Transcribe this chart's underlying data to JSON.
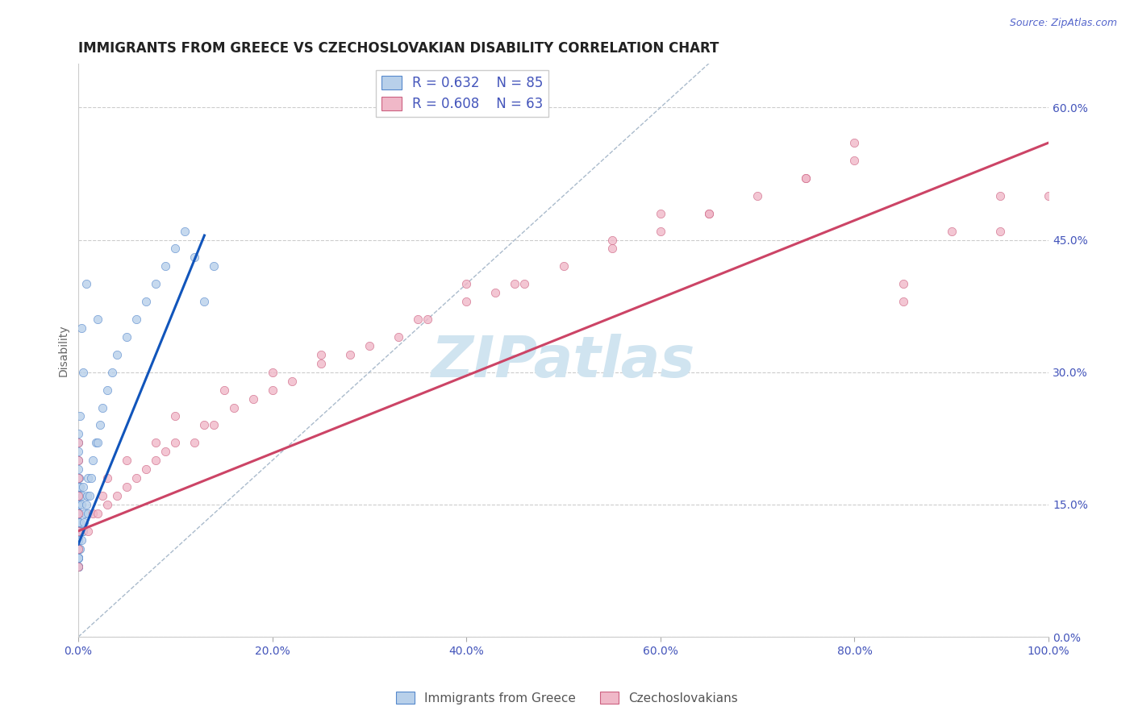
{
  "title": "IMMIGRANTS FROM GREECE VS CZECHOSLOVAKIAN DISABILITY CORRELATION CHART",
  "source": "Source: ZipAtlas.com",
  "ylabel": "Disability",
  "xlim": [
    0.0,
    1.0
  ],
  "ylim": [
    0.0,
    0.65
  ],
  "xticks": [
    0.0,
    0.2,
    0.4,
    0.6,
    0.8,
    1.0
  ],
  "xtick_labels": [
    "0.0%",
    "20.0%",
    "40.0%",
    "60.0%",
    "80.0%",
    "100.0%"
  ],
  "yticks": [
    0.0,
    0.15,
    0.3,
    0.45,
    0.6
  ],
  "ytick_labels": [
    "0.0%",
    "15.0%",
    "30.0%",
    "45.0%",
    "60.0%"
  ],
  "grid_color": "#cccccc",
  "background_color": "#ffffff",
  "watermark_text": "ZIPatlas",
  "watermark_color": "#d0e4f0",
  "blue_series": {
    "label": "Immigrants from Greece",
    "R": 0.632,
    "N": 85,
    "face_color": "#b8d0ea",
    "edge_color": "#5588cc",
    "marker_size": 55,
    "x": [
      0.0,
      0.0,
      0.0,
      0.0,
      0.0,
      0.0,
      0.0,
      0.0,
      0.0,
      0.0,
      0.0,
      0.0,
      0.0,
      0.0,
      0.0,
      0.0,
      0.0,
      0.0,
      0.0,
      0.0,
      0.0,
      0.0,
      0.0,
      0.0,
      0.0,
      0.0,
      0.0,
      0.0,
      0.0,
      0.0,
      0.0,
      0.0,
      0.0,
      0.0,
      0.0,
      0.0,
      0.0,
      0.0,
      0.0,
      0.0,
      0.001,
      0.001,
      0.001,
      0.001,
      0.001,
      0.002,
      0.002,
      0.002,
      0.003,
      0.003,
      0.004,
      0.004,
      0.005,
      0.005,
      0.006,
      0.007,
      0.008,
      0.009,
      0.01,
      0.01,
      0.012,
      0.013,
      0.015,
      0.018,
      0.02,
      0.022,
      0.025,
      0.03,
      0.035,
      0.04,
      0.05,
      0.06,
      0.07,
      0.08,
      0.09,
      0.1,
      0.11,
      0.12,
      0.13,
      0.14,
      0.005,
      0.002,
      0.003,
      0.008,
      0.02
    ],
    "y": [
      0.08,
      0.09,
      0.1,
      0.11,
      0.12,
      0.13,
      0.14,
      0.15,
      0.16,
      0.17,
      0.18,
      0.19,
      0.2,
      0.21,
      0.22,
      0.23,
      0.08,
      0.09,
      0.1,
      0.11,
      0.12,
      0.13,
      0.14,
      0.15,
      0.16,
      0.17,
      0.08,
      0.09,
      0.1,
      0.11,
      0.12,
      0.13,
      0.14,
      0.15,
      0.16,
      0.17,
      0.08,
      0.09,
      0.1,
      0.11,
      0.1,
      0.12,
      0.14,
      0.16,
      0.18,
      0.1,
      0.13,
      0.17,
      0.11,
      0.15,
      0.12,
      0.16,
      0.12,
      0.17,
      0.13,
      0.14,
      0.15,
      0.16,
      0.14,
      0.18,
      0.16,
      0.18,
      0.2,
      0.22,
      0.22,
      0.24,
      0.26,
      0.28,
      0.3,
      0.32,
      0.34,
      0.36,
      0.38,
      0.4,
      0.42,
      0.44,
      0.46,
      0.43,
      0.38,
      0.42,
      0.3,
      0.25,
      0.35,
      0.4,
      0.36
    ],
    "trend_x": [
      0.0,
      0.13
    ],
    "trend_y": [
      0.105,
      0.455
    ],
    "trend_color": "#1155bb",
    "trend_linewidth": 2.2
  },
  "pink_series": {
    "label": "Czechoslovakians",
    "R": 0.608,
    "N": 63,
    "face_color": "#f0b8c8",
    "edge_color": "#cc6080",
    "marker_size": 55,
    "x": [
      0.0,
      0.0,
      0.0,
      0.0,
      0.0,
      0.0,
      0.0,
      0.0,
      0.01,
      0.015,
      0.02,
      0.025,
      0.03,
      0.04,
      0.05,
      0.06,
      0.07,
      0.08,
      0.09,
      0.1,
      0.12,
      0.14,
      0.16,
      0.18,
      0.2,
      0.22,
      0.25,
      0.28,
      0.3,
      0.33,
      0.36,
      0.4,
      0.43,
      0.46,
      0.5,
      0.55,
      0.6,
      0.65,
      0.7,
      0.75,
      0.8,
      0.85,
      0.9,
      0.95,
      1.0,
      0.05,
      0.1,
      0.15,
      0.25,
      0.35,
      0.45,
      0.55,
      0.65,
      0.75,
      0.85,
      0.95,
      0.03,
      0.08,
      0.13,
      0.2,
      0.4,
      0.6,
      0.8
    ],
    "y": [
      0.08,
      0.1,
      0.12,
      0.14,
      0.16,
      0.18,
      0.2,
      0.22,
      0.12,
      0.14,
      0.14,
      0.16,
      0.15,
      0.16,
      0.17,
      0.18,
      0.19,
      0.2,
      0.21,
      0.22,
      0.22,
      0.24,
      0.26,
      0.27,
      0.28,
      0.29,
      0.31,
      0.32,
      0.33,
      0.34,
      0.36,
      0.38,
      0.39,
      0.4,
      0.42,
      0.44,
      0.46,
      0.48,
      0.5,
      0.52,
      0.54,
      0.4,
      0.46,
      0.5,
      0.5,
      0.2,
      0.25,
      0.28,
      0.32,
      0.36,
      0.4,
      0.45,
      0.48,
      0.52,
      0.38,
      0.46,
      0.18,
      0.22,
      0.24,
      0.3,
      0.4,
      0.48,
      0.56
    ],
    "trend_x": [
      0.0,
      1.0
    ],
    "trend_y": [
      0.12,
      0.56
    ],
    "trend_color": "#cc4466",
    "trend_linewidth": 2.2
  },
  "ref_line": {
    "x": [
      0.0,
      0.65
    ],
    "y": [
      0.0,
      0.65
    ],
    "color": "#aabbcc",
    "style": "--",
    "linewidth": 1.0
  },
  "title_fontsize": 12,
  "tick_fontsize": 10,
  "tick_color": "#4455bb",
  "ylabel_fontsize": 10,
  "ylabel_color": "#666666",
  "source_fontsize": 9,
  "source_color": "#5566cc"
}
